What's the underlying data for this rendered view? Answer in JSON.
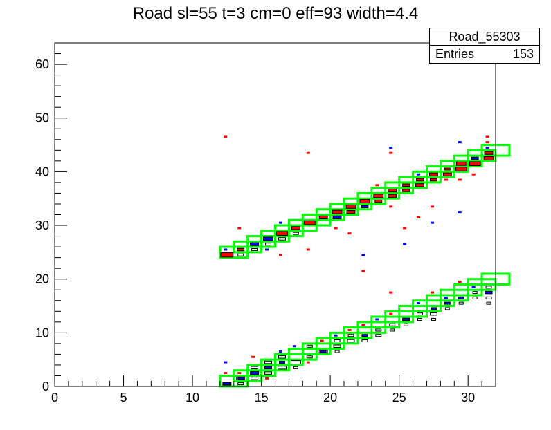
{
  "chart_data": {
    "type": "heatmap",
    "title": "Road sl=55 t=3 cm=0 eff=93 width=4.4",
    "xlabel": "",
    "ylabel": "",
    "xlim": [
      0,
      32
    ],
    "ylim": [
      0,
      64
    ],
    "x_ticks": [
      0,
      5,
      10,
      15,
      20,
      25,
      30
    ],
    "y_ticks": [
      0,
      10,
      20,
      30,
      40,
      50,
      60
    ],
    "grid": false,
    "stats": {
      "name": "Road_55303",
      "entries_label": "Entries",
      "entries": "153"
    },
    "colors": {
      "road_box": "#00ff00",
      "red_hits": "#ff0000",
      "blue_hits": "#0000ff",
      "black_hits": "#000000"
    },
    "road_boxes": [
      {
        "x": 12,
        "y": 24
      },
      {
        "x": 13,
        "y": 25
      },
      {
        "x": 14,
        "y": 26
      },
      {
        "x": 15,
        "y": 27
      },
      {
        "x": 16,
        "y": 28
      },
      {
        "x": 17,
        "y": 29
      },
      {
        "x": 18,
        "y": 30
      },
      {
        "x": 19,
        "y": 31
      },
      {
        "x": 20,
        "y": 32
      },
      {
        "x": 21,
        "y": 33
      },
      {
        "x": 22,
        "y": 34
      },
      {
        "x": 23,
        "y": 35
      },
      {
        "x": 24,
        "y": 36
      },
      {
        "x": 25,
        "y": 37
      },
      {
        "x": 26,
        "y": 38
      },
      {
        "x": 27,
        "y": 39
      },
      {
        "x": 28,
        "y": 40
      },
      {
        "x": 29,
        "y": 41
      },
      {
        "x": 30,
        "y": 42
      },
      {
        "x": 31,
        "y": 43
      },
      {
        "x": 12,
        "y": 0
      },
      {
        "x": 13,
        "y": 1
      },
      {
        "x": 14,
        "y": 2
      },
      {
        "x": 15,
        "y": 3
      },
      {
        "x": 16,
        "y": 4
      },
      {
        "x": 17,
        "y": 5
      },
      {
        "x": 18,
        "y": 6
      },
      {
        "x": 19,
        "y": 7
      },
      {
        "x": 20,
        "y": 8
      },
      {
        "x": 21,
        "y": 9
      },
      {
        "x": 22,
        "y": 10
      },
      {
        "x": 23,
        "y": 11
      },
      {
        "x": 24,
        "y": 12
      },
      {
        "x": 25,
        "y": 13
      },
      {
        "x": 26,
        "y": 14
      },
      {
        "x": 27,
        "y": 15
      },
      {
        "x": 28,
        "y": 16
      },
      {
        "x": 29,
        "y": 17
      },
      {
        "x": 30,
        "y": 18
      },
      {
        "x": 31,
        "y": 19
      }
    ],
    "filled_cells": [
      {
        "x": 12.5,
        "y": 24.5,
        "w": 0.9,
        "c": "red"
      },
      {
        "x": 13.5,
        "y": 25.5,
        "w": 0.5,
        "c": "red"
      },
      {
        "x": 14.5,
        "y": 26.5,
        "w": 0.6,
        "c": "blue"
      },
      {
        "x": 15.5,
        "y": 27.5,
        "w": 0.7,
        "c": "blue"
      },
      {
        "x": 16.5,
        "y": 28.5,
        "w": 0.8,
        "c": "red"
      },
      {
        "x": 17.5,
        "y": 29.5,
        "w": 0.6,
        "c": "red"
      },
      {
        "x": 18.5,
        "y": 30.5,
        "w": 0.8,
        "c": "red"
      },
      {
        "x": 19.5,
        "y": 31.5,
        "w": 0.6,
        "c": "red"
      },
      {
        "x": 20.5,
        "y": 32.5,
        "w": 0.7,
        "c": "red"
      },
      {
        "x": 20.5,
        "y": 31.5,
        "w": 0.6,
        "c": "blue"
      },
      {
        "x": 21.5,
        "y": 33.5,
        "w": 0.7,
        "c": "red"
      },
      {
        "x": 21.5,
        "y": 32.5,
        "w": 0.6,
        "c": "red"
      },
      {
        "x": 22.5,
        "y": 34.5,
        "w": 0.7,
        "c": "red"
      },
      {
        "x": 22.5,
        "y": 33.5,
        "w": 0.5,
        "c": "blue"
      },
      {
        "x": 23.5,
        "y": 35.5,
        "w": 0.7,
        "c": "red"
      },
      {
        "x": 23.5,
        "y": 34.5,
        "w": 0.5,
        "c": "red"
      },
      {
        "x": 24.5,
        "y": 36.5,
        "w": 0.6,
        "c": "red"
      },
      {
        "x": 24.5,
        "y": 35.5,
        "w": 0.6,
        "c": "red"
      },
      {
        "x": 25.5,
        "y": 37.5,
        "w": 0.5,
        "c": "red"
      },
      {
        "x": 25.5,
        "y": 36.5,
        "w": 0.5,
        "c": "red"
      },
      {
        "x": 26.5,
        "y": 38.5,
        "w": 0.5,
        "c": "red"
      },
      {
        "x": 26.5,
        "y": 37.5,
        "w": 0.6,
        "c": "red"
      },
      {
        "x": 27.5,
        "y": 39.5,
        "w": 0.6,
        "c": "red"
      },
      {
        "x": 27.5,
        "y": 38.5,
        "w": 0.5,
        "c": "red"
      },
      {
        "x": 28.5,
        "y": 40.5,
        "w": 0.4,
        "c": "red"
      },
      {
        "x": 28.5,
        "y": 39.5,
        "w": 0.6,
        "c": "red"
      },
      {
        "x": 29.5,
        "y": 41.5,
        "w": 0.7,
        "c": "red"
      },
      {
        "x": 29.5,
        "y": 40.5,
        "w": 0.8,
        "c": "red"
      },
      {
        "x": 30.5,
        "y": 42.5,
        "w": 0.5,
        "c": "blue"
      },
      {
        "x": 30.5,
        "y": 41.5,
        "w": 0.8,
        "c": "red"
      },
      {
        "x": 31.5,
        "y": 43.5,
        "w": 0.6,
        "c": "red"
      },
      {
        "x": 31.5,
        "y": 42.5,
        "w": 0.7,
        "c": "red"
      },
      {
        "x": 12.5,
        "y": 0.5,
        "w": 0.5,
        "c": "blue"
      },
      {
        "x": 13.5,
        "y": 1.5,
        "w": 0.4,
        "c": "blue"
      },
      {
        "x": 14.5,
        "y": 2.5,
        "w": 0.6,
        "c": "blue"
      },
      {
        "x": 15.5,
        "y": 3.5,
        "w": 0.5,
        "c": "blue"
      },
      {
        "x": 16.5,
        "y": 4.5,
        "w": 0.4,
        "c": "blue"
      },
      {
        "x": 19.5,
        "y": 6.5,
        "w": 0.4,
        "c": "blue"
      },
      {
        "x": 22.5,
        "y": 9.5,
        "w": 0.4,
        "c": "blue"
      },
      {
        "x": 25.5,
        "y": 12.5,
        "w": 0.4,
        "c": "blue"
      },
      {
        "x": 27.5,
        "y": 14.5,
        "w": 0.4,
        "c": "blue"
      },
      {
        "x": 28.5,
        "y": 15.5,
        "w": 0.4,
        "c": "blue"
      },
      {
        "x": 29.5,
        "y": 16.5,
        "w": 0.4,
        "c": "blue"
      },
      {
        "x": 31.5,
        "y": 17.5,
        "w": 0.5,
        "c": "blue"
      }
    ],
    "outline_cells": [
      {
        "x": 13.5,
        "y": 24.5,
        "w": 0.4
      },
      {
        "x": 14.5,
        "y": 25.5,
        "w": 0.4
      },
      {
        "x": 15.5,
        "y": 26.5,
        "w": 0.4
      },
      {
        "x": 16.5,
        "y": 27.5,
        "w": 0.5
      },
      {
        "x": 17.5,
        "y": 28.5,
        "w": 0.4
      },
      {
        "x": 12.5,
        "y": 0.5,
        "w": 0.6
      },
      {
        "x": 13.5,
        "y": 0.5,
        "w": 0.4
      },
      {
        "x": 13.5,
        "y": 1.5,
        "w": 0.6
      },
      {
        "x": 14.5,
        "y": 1.5,
        "w": 0.5
      },
      {
        "x": 14.5,
        "y": 3.5,
        "w": 0.5
      },
      {
        "x": 15.5,
        "y": 2.5,
        "w": 0.5
      },
      {
        "x": 15.5,
        "y": 4.5,
        "w": 0.5
      },
      {
        "x": 16.5,
        "y": 3.5,
        "w": 0.6
      },
      {
        "x": 16.5,
        "y": 5.5,
        "w": 0.5
      },
      {
        "x": 17.5,
        "y": 4.5,
        "w": 0.7
      },
      {
        "x": 17.5,
        "y": 3.5,
        "w": 0.3
      },
      {
        "x": 18.5,
        "y": 5.5,
        "w": 0.4
      },
      {
        "x": 18.5,
        "y": 7.5,
        "w": 0.4
      },
      {
        "x": 19.5,
        "y": 6.5,
        "w": 0.6
      },
      {
        "x": 20.5,
        "y": 7.5,
        "w": 0.5
      },
      {
        "x": 20.5,
        "y": 8.5,
        "w": 0.4
      },
      {
        "x": 20.5,
        "y": 6.5,
        "w": 0.3
      },
      {
        "x": 21.5,
        "y": 8.5,
        "w": 0.5
      },
      {
        "x": 21.5,
        "y": 9.5,
        "w": 0.4
      },
      {
        "x": 22.5,
        "y": 8.5,
        "w": 0.4
      },
      {
        "x": 23.5,
        "y": 10.5,
        "w": 0.4
      },
      {
        "x": 23.5,
        "y": 9.5,
        "w": 0.4
      },
      {
        "x": 24.5,
        "y": 11.5,
        "w": 0.4
      },
      {
        "x": 24.5,
        "y": 10.5,
        "w": 0.3
      },
      {
        "x": 25.5,
        "y": 12.5,
        "w": 0.5
      },
      {
        "x": 25.5,
        "y": 11.5,
        "w": 0.3
      },
      {
        "x": 26.5,
        "y": 13.5,
        "w": 0.4
      },
      {
        "x": 26.5,
        "y": 12.5,
        "w": 0.3
      },
      {
        "x": 27.5,
        "y": 13.5,
        "w": 0.5
      },
      {
        "x": 27.5,
        "y": 12.5,
        "w": 0.3
      },
      {
        "x": 28.5,
        "y": 14.5,
        "w": 0.3
      },
      {
        "x": 29.5,
        "y": 15.5,
        "w": 0.3
      },
      {
        "x": 30.5,
        "y": 16.5,
        "w": 0.3
      },
      {
        "x": 30.5,
        "y": 17.5,
        "w": 0.3
      },
      {
        "x": 31.5,
        "y": 18.5,
        "w": 0.4
      },
      {
        "x": 31.5,
        "y": 16.5,
        "w": 0.4
      },
      {
        "x": 31.5,
        "y": 15.5,
        "w": 0.3
      }
    ],
    "scatter_marks": [
      {
        "x": 12.4,
        "y": 46.5,
        "c": "red"
      },
      {
        "x": 18.4,
        "y": 43.5,
        "c": "red"
      },
      {
        "x": 24.4,
        "y": 44.5,
        "c": "blue"
      },
      {
        "x": 24.4,
        "y": 43.5,
        "c": "red"
      },
      {
        "x": 29.4,
        "y": 45.5,
        "c": "blue"
      },
      {
        "x": 31.4,
        "y": 46.5,
        "c": "red"
      },
      {
        "x": 31.4,
        "y": 45.5,
        "c": "red"
      },
      {
        "x": 31.4,
        "y": 44.5,
        "c": "blue"
      },
      {
        "x": 13.4,
        "y": 29.5,
        "c": "red"
      },
      {
        "x": 16.4,
        "y": 24.5,
        "c": "red"
      },
      {
        "x": 18.4,
        "y": 25.5,
        "c": "red"
      },
      {
        "x": 22.4,
        "y": 24.5,
        "c": "blue"
      },
      {
        "x": 22.4,
        "y": 21.5,
        "c": "red"
      },
      {
        "x": 24.4,
        "y": 17.5,
        "c": "red"
      },
      {
        "x": 25.4,
        "y": 26.5,
        "c": "blue"
      },
      {
        "x": 25.4,
        "y": 29.5,
        "c": "red"
      },
      {
        "x": 26.4,
        "y": 31.5,
        "c": "red"
      },
      {
        "x": 27.4,
        "y": 30.5,
        "c": "blue"
      },
      {
        "x": 27.4,
        "y": 33.5,
        "c": "red"
      },
      {
        "x": 29.4,
        "y": 32.5,
        "c": "blue"
      },
      {
        "x": 24.4,
        "y": 33.5,
        "c": "red"
      },
      {
        "x": 21.4,
        "y": 28.5,
        "c": "red"
      },
      {
        "x": 20.4,
        "y": 29.5,
        "c": "red"
      },
      {
        "x": 15.4,
        "y": 25.5,
        "c": "blue"
      },
      {
        "x": 16.4,
        "y": 30.5,
        "c": "blue"
      },
      {
        "x": 12.4,
        "y": 25.5,
        "c": "blue"
      },
      {
        "x": 23.4,
        "y": 37.5,
        "c": "red"
      },
      {
        "x": 26.4,
        "y": 39.5,
        "c": "blue"
      },
      {
        "x": 28.4,
        "y": 38.5,
        "c": "red"
      },
      {
        "x": 29.4,
        "y": 38.5,
        "c": "red"
      },
      {
        "x": 30.4,
        "y": 39.5,
        "c": "red"
      },
      {
        "x": 12.4,
        "y": 4.5,
        "c": "blue"
      },
      {
        "x": 12.4,
        "y": 2.5,
        "c": "red"
      },
      {
        "x": 13.4,
        "y": 2.5,
        "c": "red"
      },
      {
        "x": 15.4,
        "y": 1.5,
        "c": "red"
      },
      {
        "x": 17.4,
        "y": 7.5,
        "c": "blue"
      },
      {
        "x": 18.4,
        "y": 4.5,
        "c": "red"
      },
      {
        "x": 19.4,
        "y": 8.5,
        "c": "red"
      },
      {
        "x": 20.4,
        "y": 9.5,
        "c": "blue"
      },
      {
        "x": 22.4,
        "y": 11.5,
        "c": "red"
      },
      {
        "x": 23.4,
        "y": 12.5,
        "c": "blue"
      },
      {
        "x": 24.4,
        "y": 13.5,
        "c": "red"
      },
      {
        "x": 26.4,
        "y": 15.5,
        "c": "blue"
      },
      {
        "x": 27.4,
        "y": 17.5,
        "c": "red"
      },
      {
        "x": 29.4,
        "y": 19.5,
        "c": "red"
      },
      {
        "x": 30.4,
        "y": 18.5,
        "c": "blue"
      },
      {
        "x": 28.4,
        "y": 16.5,
        "c": "blue"
      },
      {
        "x": 21.4,
        "y": 10.5,
        "c": "red"
      },
      {
        "x": 14.4,
        "y": 5.5,
        "c": "red"
      },
      {
        "x": 16.4,
        "y": 6.5,
        "c": "blue"
      }
    ]
  }
}
